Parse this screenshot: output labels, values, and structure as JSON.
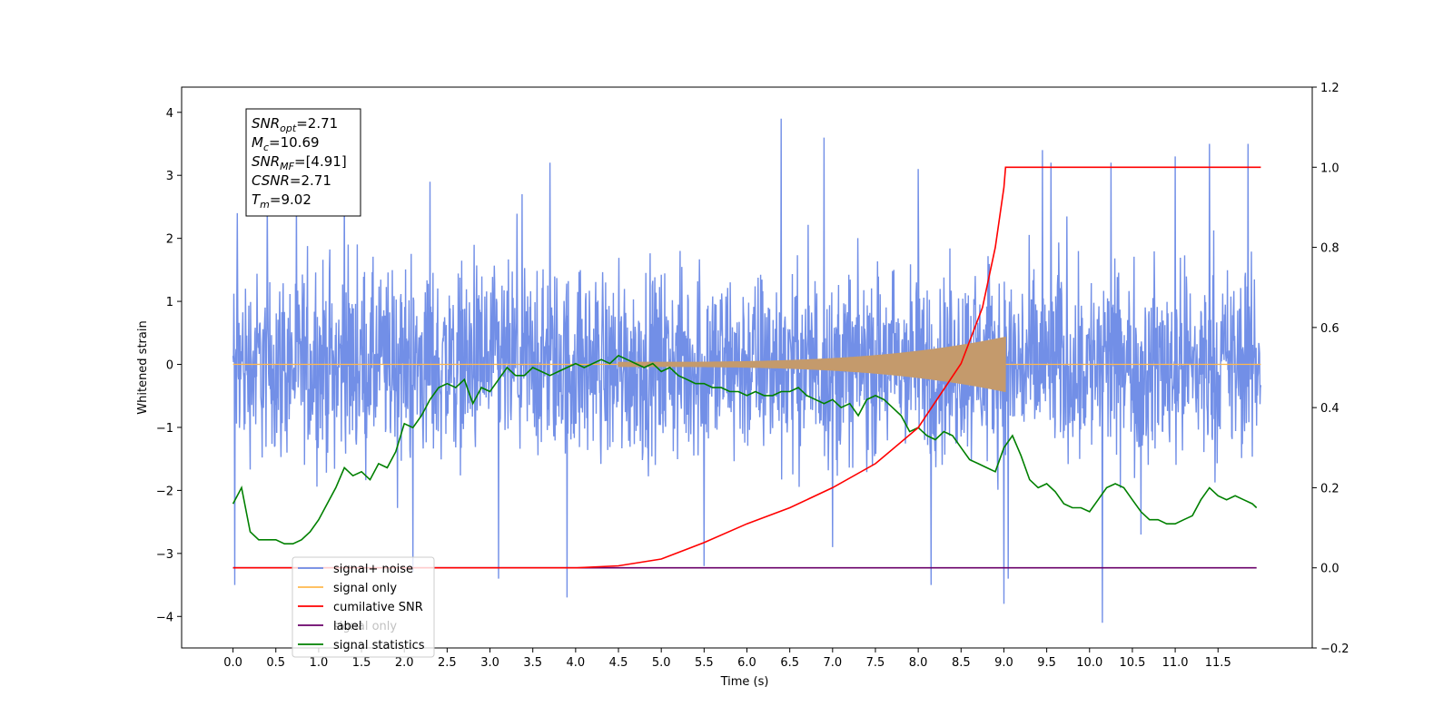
{
  "chart_data": {
    "type": "line",
    "xlabel": "Time (s)",
    "ylabel_left": "Whitened strain",
    "ylabel_right": "",
    "xlim": [
      -0.6,
      12.6
    ],
    "ylim_left": [
      -4.5,
      4.4
    ],
    "ylim_right": [
      -0.2,
      1.2
    ],
    "x_ticks": [
      "0.0",
      "0.5",
      "1.0",
      "1.5",
      "2.0",
      "2.5",
      "3.0",
      "3.5",
      "4.0",
      "4.5",
      "5.0",
      "5.5",
      "6.0",
      "6.5",
      "7.0",
      "7.5",
      "8.0",
      "8.5",
      "9.0",
      "9.5",
      "10.0",
      "10.5",
      "11.0",
      "11.5"
    ],
    "y_ticks_left": [
      "4",
      "3",
      "2",
      "1",
      "0",
      "−1",
      "−2",
      "−3",
      "−4"
    ],
    "y_ticks_right": [
      "1.2",
      "1.0",
      "0.8",
      "0.6",
      "0.4",
      "0.2",
      "0.0",
      "−0.2"
    ],
    "grid": false,
    "legend_position": "lower-left",
    "series": [
      {
        "name": "signal+ noise",
        "axis": "left",
        "color": "#6a89e6",
        "x_range": [
          0.0,
          12.0
        ],
        "band": [
          -2.0,
          2.1
        ],
        "spikes_up": [
          [
            0.05,
            2.4
          ],
          [
            0.4,
            2.6
          ],
          [
            1.3,
            2.8
          ],
          [
            2.3,
            2.9
          ],
          [
            3.7,
            3.2
          ],
          [
            5.5,
            2.6
          ],
          [
            6.4,
            3.9
          ],
          [
            6.9,
            3.6
          ],
          [
            8.0,
            3.1
          ],
          [
            9.45,
            3.4
          ],
          [
            9.55,
            3.2
          ],
          [
            10.25,
            3.2
          ],
          [
            11.0,
            3.3
          ],
          [
            11.4,
            3.5
          ],
          [
            11.85,
            3.5
          ]
        ],
        "spikes_down": [
          [
            0.02,
            -3.5
          ],
          [
            2.1,
            -3.3
          ],
          [
            3.1,
            -3.4
          ],
          [
            3.9,
            -3.7
          ],
          [
            5.5,
            -3.2
          ],
          [
            7.0,
            -2.9
          ],
          [
            8.15,
            -3.5
          ],
          [
            9.0,
            -3.8
          ],
          [
            9.05,
            -3.4
          ],
          [
            10.15,
            -4.1
          ],
          [
            10.6,
            -2.7
          ]
        ]
      },
      {
        "name": "signal only",
        "axis": "left",
        "color": "#ffb84d",
        "chirp_start": 4.5,
        "chirp_end": 9.02,
        "peak_amplitude": 0.4
      },
      {
        "name": "cumilative SNR",
        "axis": "right",
        "color": "#ff0000",
        "x": [
          0.0,
          4.0,
          4.5,
          5.0,
          5.5,
          6.0,
          6.5,
          7.0,
          7.5,
          8.0,
          8.5,
          8.75,
          8.9,
          9.0,
          9.02,
          12.0
        ],
        "y": [
          0.0,
          0.0,
          0.005,
          0.022,
          0.063,
          0.11,
          0.15,
          0.2,
          0.26,
          0.35,
          0.51,
          0.65,
          0.8,
          0.95,
          1.0,
          1.0
        ]
      },
      {
        "name": "label",
        "axis": "right",
        "color": "#6a006a",
        "x": [
          0.0,
          11.95
        ],
        "y": [
          0.0,
          0.0
        ]
      },
      {
        "name": "signal statistics",
        "axis": "right",
        "color": "#008000",
        "x": [
          0.0,
          0.1,
          0.2,
          0.3,
          0.4,
          0.5,
          0.6,
          0.7,
          0.8,
          0.9,
          1.0,
          1.1,
          1.2,
          1.3,
          1.4,
          1.5,
          1.6,
          1.7,
          1.8,
          1.9,
          2.0,
          2.1,
          2.2,
          2.3,
          2.4,
          2.5,
          2.6,
          2.7,
          2.8,
          2.9,
          3.0,
          3.1,
          3.2,
          3.3,
          3.4,
          3.5,
          3.6,
          3.7,
          3.8,
          3.9,
          4.0,
          4.1,
          4.2,
          4.3,
          4.4,
          4.5,
          4.6,
          4.7,
          4.8,
          4.9,
          5.0,
          5.1,
          5.2,
          5.3,
          5.4,
          5.5,
          5.6,
          5.7,
          5.8,
          5.9,
          6.0,
          6.1,
          6.2,
          6.3,
          6.4,
          6.5,
          6.6,
          6.7,
          6.8,
          6.9,
          7.0,
          7.1,
          7.2,
          7.3,
          7.4,
          7.5,
          7.6,
          7.7,
          7.8,
          7.9,
          8.0,
          8.1,
          8.2,
          8.3,
          8.4,
          8.5,
          8.6,
          8.7,
          8.8,
          8.9,
          9.0,
          9.1,
          9.2,
          9.3,
          9.4,
          9.5,
          9.6,
          9.7,
          9.8,
          9.9,
          10.0,
          10.1,
          10.2,
          10.3,
          10.4,
          10.5,
          10.6,
          10.7,
          10.8,
          10.9,
          11.0,
          11.1,
          11.2,
          11.3,
          11.4,
          11.5,
          11.6,
          11.7,
          11.8,
          11.9,
          11.95
        ],
        "y": [
          0.16,
          0.2,
          0.09,
          0.07,
          0.07,
          0.07,
          0.06,
          0.06,
          0.07,
          0.09,
          0.12,
          0.16,
          0.2,
          0.25,
          0.23,
          0.24,
          0.22,
          0.26,
          0.25,
          0.29,
          0.36,
          0.35,
          0.38,
          0.42,
          0.45,
          0.46,
          0.45,
          0.47,
          0.41,
          0.45,
          0.44,
          0.47,
          0.5,
          0.48,
          0.48,
          0.5,
          0.49,
          0.48,
          0.49,
          0.5,
          0.51,
          0.5,
          0.51,
          0.52,
          0.51,
          0.53,
          0.52,
          0.51,
          0.5,
          0.51,
          0.49,
          0.5,
          0.48,
          0.47,
          0.46,
          0.46,
          0.45,
          0.45,
          0.44,
          0.44,
          0.43,
          0.44,
          0.43,
          0.43,
          0.44,
          0.44,
          0.45,
          0.43,
          0.42,
          0.41,
          0.42,
          0.4,
          0.41,
          0.38,
          0.42,
          0.43,
          0.42,
          0.4,
          0.38,
          0.34,
          0.35,
          0.33,
          0.32,
          0.34,
          0.33,
          0.3,
          0.27,
          0.26,
          0.25,
          0.24,
          0.3,
          0.33,
          0.28,
          0.22,
          0.2,
          0.21,
          0.19,
          0.16,
          0.15,
          0.15,
          0.14,
          0.17,
          0.2,
          0.21,
          0.2,
          0.17,
          0.14,
          0.12,
          0.12,
          0.11,
          0.11,
          0.12,
          0.13,
          0.17,
          0.2,
          0.18,
          0.17,
          0.18,
          0.17,
          0.16,
          0.15
        ]
      }
    ],
    "annotation": {
      "lines": [
        {
          "base": "SNR",
          "sub": "opt",
          "value": "=2.71"
        },
        {
          "base": "M",
          "sub": "c",
          "value": "=10.69"
        },
        {
          "base": "SNR",
          "sub": "MF",
          "value": "=[4.91]"
        },
        {
          "base": "CSNR",
          "sub": "",
          "value": "=2.71"
        },
        {
          "base": "T",
          "sub": "m",
          "value": "=9.02"
        }
      ]
    },
    "legend_overlap_text": "signal only"
  }
}
